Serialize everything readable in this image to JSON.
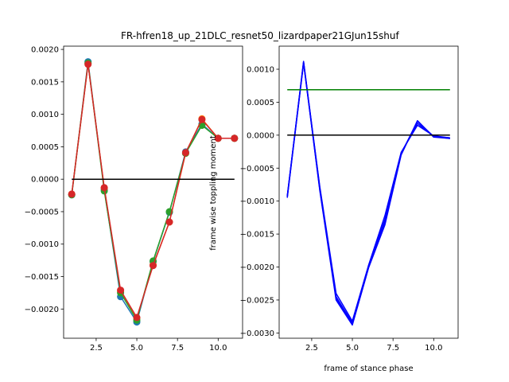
{
  "title": "FR-hfren18_up_21DLC_resnet50_lizardpaper21GJun15shuf",
  "chart_data": [
    {
      "type": "line",
      "title": "",
      "xlabel": "",
      "ylabel": "",
      "xlim": [
        0.5,
        11.5
      ],
      "ylim": [
        -0.00245,
        0.00205
      ],
      "xticks": [
        2.5,
        5.0,
        7.5,
        10.0
      ],
      "xtick_labels": [
        "2.5",
        "5.0",
        "7.5",
        "10.0"
      ],
      "yticks": [
        -0.002,
        -0.0015,
        -0.001,
        -0.0005,
        0.0,
        0.0005,
        0.001,
        0.0015,
        0.002
      ],
      "ytick_labels": [
        "−0.0020",
        "−0.0015",
        "−0.0010",
        "−0.0005",
        "0.0000",
        "0.0005",
        "0.0010",
        "0.0015",
        "0.0020"
      ],
      "x": [
        1,
        2,
        3,
        4,
        5,
        6,
        7,
        8,
        9,
        10,
        11
      ],
      "series": [
        {
          "color": "#1f77b4",
          "markers": true,
          "values": [
            -0.00024,
            0.00181,
            -0.00016,
            -0.00181,
            -0.0022,
            -0.00127,
            -0.00051,
            0.00042,
            0.00085,
            0.00063,
            0.00063
          ]
        },
        {
          "color": "#ff7f0e",
          "markers": true,
          "values": [
            -0.00023,
            0.00178,
            -0.00014,
            -0.00173,
            -0.00214,
            -0.00132,
            -0.00066,
            0.0004,
            0.00093,
            0.00063,
            0.00063
          ]
        },
        {
          "color": "#2ca02c",
          "markers": true,
          "values": [
            -0.00024,
            0.00179,
            -0.00018,
            -0.00175,
            -0.00217,
            -0.00126,
            -0.0005,
            0.0004,
            0.00083,
            0.00063,
            0.00063
          ]
        },
        {
          "color": "#d62728",
          "markers": true,
          "values": [
            -0.00023,
            0.00177,
            -0.00013,
            -0.00171,
            -0.00213,
            -0.00133,
            -0.00066,
            0.00041,
            0.00092,
            0.00063,
            0.00063
          ]
        },
        {
          "color": "#000000",
          "markers": false,
          "x": [
            1,
            11
          ],
          "values": [
            0,
            0
          ]
        }
      ]
    },
    {
      "type": "line",
      "title": "",
      "xlabel": "frame of stance phase",
      "ylabel": "frame wise toppling moment",
      "xlim": [
        0.5,
        11.5
      ],
      "ylim": [
        -0.00308,
        0.00135
      ],
      "xticks": [
        2.5,
        5.0,
        7.5,
        10.0
      ],
      "xtick_labels": [
        "2.5",
        "5.0",
        "7.5",
        "10.0"
      ],
      "yticks": [
        -0.003,
        -0.0025,
        -0.002,
        -0.0015,
        -0.001,
        -0.0005,
        0.0,
        0.0005,
        0.001
      ],
      "ytick_labels": [
        "−0.0030",
        "−0.0025",
        "−0.0020",
        "−0.0015",
        "−0.0010",
        "−0.0005",
        "0.0000",
        "0.0005",
        "0.0010"
      ],
      "x": [
        1,
        2,
        3,
        4,
        5,
        6,
        7,
        8,
        9,
        10,
        11
      ],
      "series": [
        {
          "color": "#0000ff",
          "markers": false,
          "values": [
            -0.00094,
            0.00111,
            -0.00084,
            -0.0025,
            -0.00288,
            -0.00201,
            -0.00136,
            -0.0003,
            0.00022,
            -3e-05,
            -5e-05
          ]
        },
        {
          "color": "#0000ff",
          "markers": false,
          "values": [
            -0.00093,
            0.00112,
            -0.0008,
            -0.00245,
            -0.00285,
            -0.00199,
            -0.00131,
            -0.00028,
            0.00021,
            -2e-05,
            -4e-05
          ]
        },
        {
          "color": "#0000ff",
          "markers": false,
          "values": [
            -0.00092,
            0.0011,
            -0.00078,
            -0.0024,
            -0.00282,
            -0.00197,
            -0.00122,
            -0.00026,
            0.00015,
            -1e-05,
            -4e-05
          ]
        },
        {
          "color": "#0000ff",
          "markers": false,
          "values": [
            -0.00095,
            0.00109,
            -0.00082,
            -0.00247,
            -0.00286,
            -0.002,
            -0.00128,
            -0.00027,
            0.00018,
            -2e-05,
            -5e-05
          ]
        },
        {
          "color": "#008000",
          "markers": false,
          "x": [
            1,
            11
          ],
          "values": [
            0.00069,
            0.00069
          ]
        },
        {
          "color": "#000000",
          "markers": false,
          "x": [
            1,
            11
          ],
          "values": [
            0,
            0
          ]
        }
      ]
    }
  ]
}
